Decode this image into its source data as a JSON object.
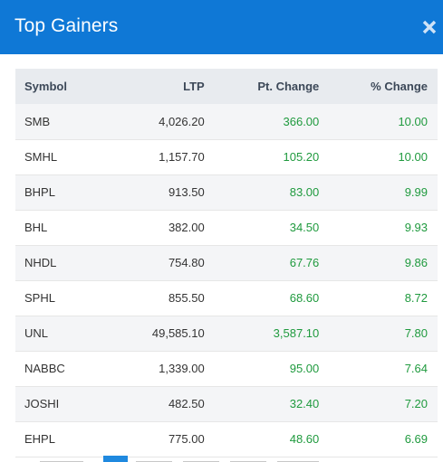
{
  "modal": {
    "title": "Top Gainers"
  },
  "table": {
    "headers": {
      "symbol": "Symbol",
      "ltp": "LTP",
      "pt_change": "Pt. Change",
      "pct_change": "% Change"
    },
    "rows": [
      {
        "symbol": "SMB",
        "ltp": "4,026.20",
        "pt_change": "366.00",
        "pct_change": "10.00"
      },
      {
        "symbol": "SMHL",
        "ltp": "1,157.70",
        "pt_change": "105.20",
        "pct_change": "10.00"
      },
      {
        "symbol": "BHPL",
        "ltp": "913.50",
        "pt_change": "83.00",
        "pct_change": "9.99"
      },
      {
        "symbol": "BHL",
        "ltp": "382.00",
        "pt_change": "34.50",
        "pct_change": "9.93"
      },
      {
        "symbol": "NHDL",
        "ltp": "754.80",
        "pt_change": "67.76",
        "pct_change": "9.86"
      },
      {
        "symbol": "SPHL",
        "ltp": "855.50",
        "pt_change": "68.60",
        "pct_change": "8.72"
      },
      {
        "symbol": "UNL",
        "ltp": "49,585.10",
        "pt_change": "3,587.10",
        "pct_change": "7.80"
      },
      {
        "symbol": "NABBC",
        "ltp": "1,339.00",
        "pt_change": "95.00",
        "pct_change": "7.64"
      },
      {
        "symbol": "JOSHI",
        "ltp": "482.50",
        "pt_change": "32.40",
        "pct_change": "7.20"
      },
      {
        "symbol": "EHPL",
        "ltp": "775.00",
        "pt_change": "48.60",
        "pct_change": "6.69"
      }
    ]
  },
  "colors": {
    "header_bg": "#0f78d6",
    "positive": "#1f9a3e",
    "table_header_bg": "#e8ebef",
    "pagination_active": "#1f89df"
  },
  "icons": {
    "close": "close-icon"
  }
}
